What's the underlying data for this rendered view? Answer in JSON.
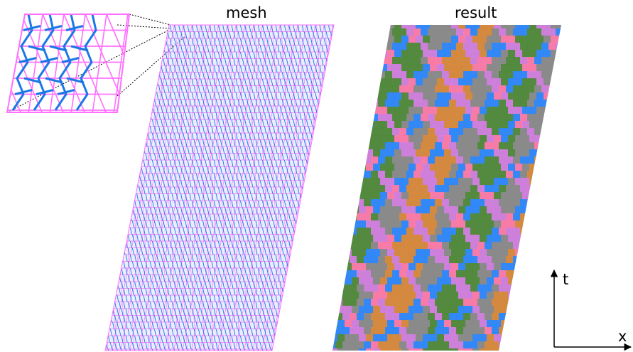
{
  "panels": {
    "mesh_title": "mesh",
    "result_title": "result"
  },
  "axes": {
    "time_label": "t",
    "space_label": "x"
  },
  "colors": {
    "mesh_primary": "#ff70ff",
    "mesh_dual": "#1a78e6",
    "result_gray": "#8a8a8a",
    "result_pink": "#ff7aa8",
    "result_blue": "#2b88ff",
    "result_orange": "#d9893a",
    "result_green": "#4f8a3a",
    "result_violet": "#d27fe0"
  }
}
